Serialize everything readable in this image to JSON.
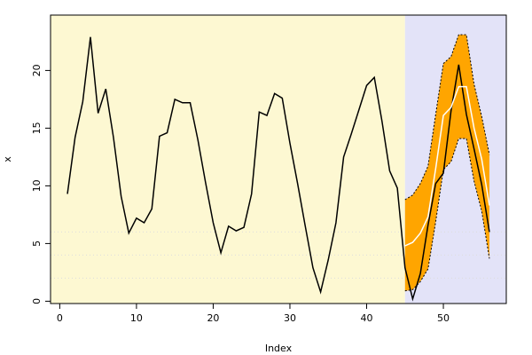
{
  "chart_data": {
    "type": "line",
    "xlabel": "Index",
    "ylabel": "x",
    "x": [
      1,
      2,
      3,
      4,
      5,
      6,
      7,
      8,
      9,
      10,
      11,
      12,
      13,
      14,
      15,
      16,
      17,
      18,
      19,
      20,
      21,
      22,
      23,
      24,
      25,
      26,
      27,
      28,
      29,
      30,
      31,
      32,
      33,
      34,
      35,
      36,
      37,
      38,
      39,
      40,
      41,
      42,
      43,
      44,
      45,
      46,
      47,
      48,
      49,
      50,
      51,
      52,
      53,
      54,
      55,
      56
    ],
    "series": [
      {
        "color": "#000000",
        "values": [
          9.3,
          14.2,
          17.3,
          22.9,
          16.3,
          18.4,
          14.2,
          9.1,
          5.9,
          7.2,
          6.8,
          8.0,
          14.3,
          14.6,
          17.5,
          17.2,
          17.2,
          14.0,
          10.3,
          6.8,
          4.2,
          6.5,
          6.1,
          6.4,
          9.3,
          16.4,
          16.1,
          18.0,
          17.6,
          13.7,
          10.2,
          6.5,
          2.9,
          0.8,
          3.6,
          6.8,
          12.5,
          14.5,
          16.6,
          18.7,
          19.4,
          15.6,
          11.3,
          9.8,
          2.9,
          0.2,
          2.4,
          6.6,
          10.2,
          11.1,
          16.5,
          20.5,
          16.2,
          13.2,
          10.1,
          6.0
        ]
      },
      {
        "color": "#ffffff",
        "values": [
          null,
          null,
          null,
          null,
          null,
          null,
          null,
          null,
          null,
          null,
          null,
          null,
          null,
          null,
          null,
          null,
          null,
          null,
          null,
          null,
          null,
          null,
          null,
          null,
          null,
          null,
          null,
          null,
          null,
          null,
          null,
          null,
          null,
          null,
          null,
          null,
          null,
          null,
          null,
          null,
          null,
          null,
          null,
          null,
          4.8,
          5.1,
          5.9,
          7.3,
          11.5,
          16.1,
          16.8,
          18.6,
          18.6,
          15.0,
          12.3,
          8.3
        ]
      }
    ],
    "band": {
      "color": "#ffa500",
      "upper": [
        null,
        null,
        null,
        null,
        null,
        null,
        null,
        null,
        null,
        null,
        null,
        null,
        null,
        null,
        null,
        null,
        null,
        null,
        null,
        null,
        null,
        null,
        null,
        null,
        null,
        null,
        null,
        null,
        null,
        null,
        null,
        null,
        null,
        null,
        null,
        null,
        null,
        null,
        null,
        null,
        null,
        null,
        null,
        null,
        8.8,
        9.2,
        10.2,
        11.7,
        16.2,
        20.6,
        21.2,
        23.1,
        23.1,
        18.8,
        16.0,
        12.7
      ],
      "lower": [
        null,
        null,
        null,
        null,
        null,
        null,
        null,
        null,
        null,
        null,
        null,
        null,
        null,
        null,
        null,
        null,
        null,
        null,
        null,
        null,
        null,
        null,
        null,
        null,
        null,
        null,
        null,
        null,
        null,
        null,
        null,
        null,
        null,
        null,
        null,
        null,
        null,
        null,
        null,
        null,
        null,
        null,
        null,
        null,
        0.9,
        1.0,
        1.7,
        2.8,
        6.9,
        11.4,
        12.1,
        14.1,
        14.1,
        10.4,
        7.8,
        3.7
      ]
    },
    "forecast_start": 45,
    "background_colors": [
      "#fdf8d2",
      "#e3e3f8"
    ],
    "reference_lines": [
      6,
      4,
      2
    ],
    "xlim": [
      -1.2,
      58.2
    ],
    "ylim": [
      -0.2,
      24.8
    ],
    "xticks": [
      0,
      10,
      20,
      30,
      40,
      50
    ],
    "yticks": [
      0,
      5,
      10,
      15,
      20
    ]
  }
}
